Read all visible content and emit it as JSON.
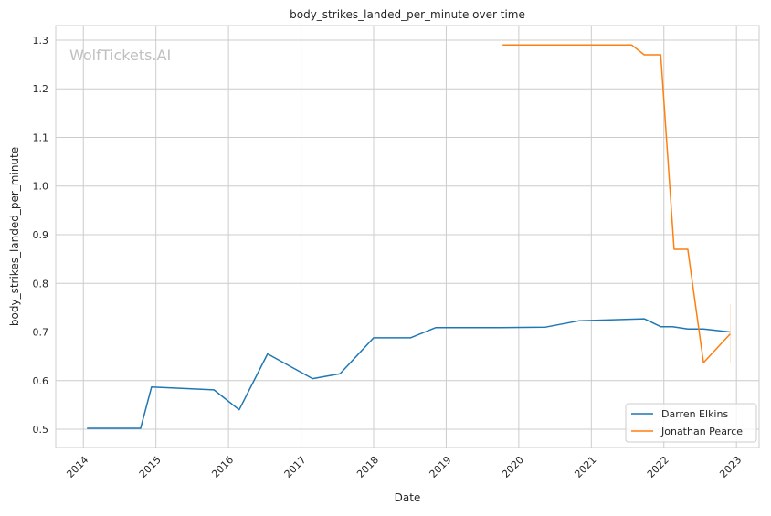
{
  "watermark": "WolfTickets.AI",
  "chart_data": {
    "type": "line",
    "title": "body_strikes_landed_per_minute over time",
    "xlabel": "Date",
    "ylabel": "body_strikes_landed_per_minute",
    "xlim": [
      "2013-08-15",
      "2023-04-25"
    ],
    "ylim": [
      0.4625,
      1.33
    ],
    "x_ticks": [
      "2014",
      "2015",
      "2016",
      "2017",
      "2018",
      "2019",
      "2020",
      "2021",
      "2022",
      "2023"
    ],
    "y_ticks": [
      "0.5",
      "0.6",
      "0.7",
      "0.8",
      "0.9",
      "1.0",
      "1.1",
      "1.2",
      "1.3"
    ],
    "grid": true,
    "legend_position": "bottom-right",
    "series": [
      {
        "name": "Darren Elkins",
        "color": "#1f77b4",
        "x": [
          "2014-01-19",
          "2014-10-16",
          "2014-12-10",
          "2015-10-20",
          "2016-02-24",
          "2016-07-16",
          "2017-02-28",
          "2017-07-16",
          "2018-01-01",
          "2018-07-05",
          "2018-11-10",
          "2019-09-27",
          "2020-05-15",
          "2020-10-30",
          "2021-09-24",
          "2021-12-16",
          "2022-02-14",
          "2022-05-01",
          "2022-07-19",
          "2022-12-01"
        ],
        "y": [
          0.502,
          0.502,
          0.587,
          0.581,
          0.54,
          0.655,
          0.604,
          0.614,
          0.688,
          0.688,
          0.709,
          0.709,
          0.71,
          0.723,
          0.727,
          0.711,
          0.711,
          0.706,
          0.706,
          0.7
        ]
      },
      {
        "name": "Jonathan Pearce",
        "color": "#ff7f0e",
        "x": [
          "2019-10-12",
          "2021-07-23",
          "2021-09-24",
          "2021-12-16",
          "2022-02-21",
          "2022-05-01",
          "2022-07-19",
          "2022-12-01"
        ],
        "y": [
          1.29,
          1.29,
          1.27,
          1.27,
          0.87,
          0.87,
          0.637,
          0.696
        ]
      }
    ]
  }
}
